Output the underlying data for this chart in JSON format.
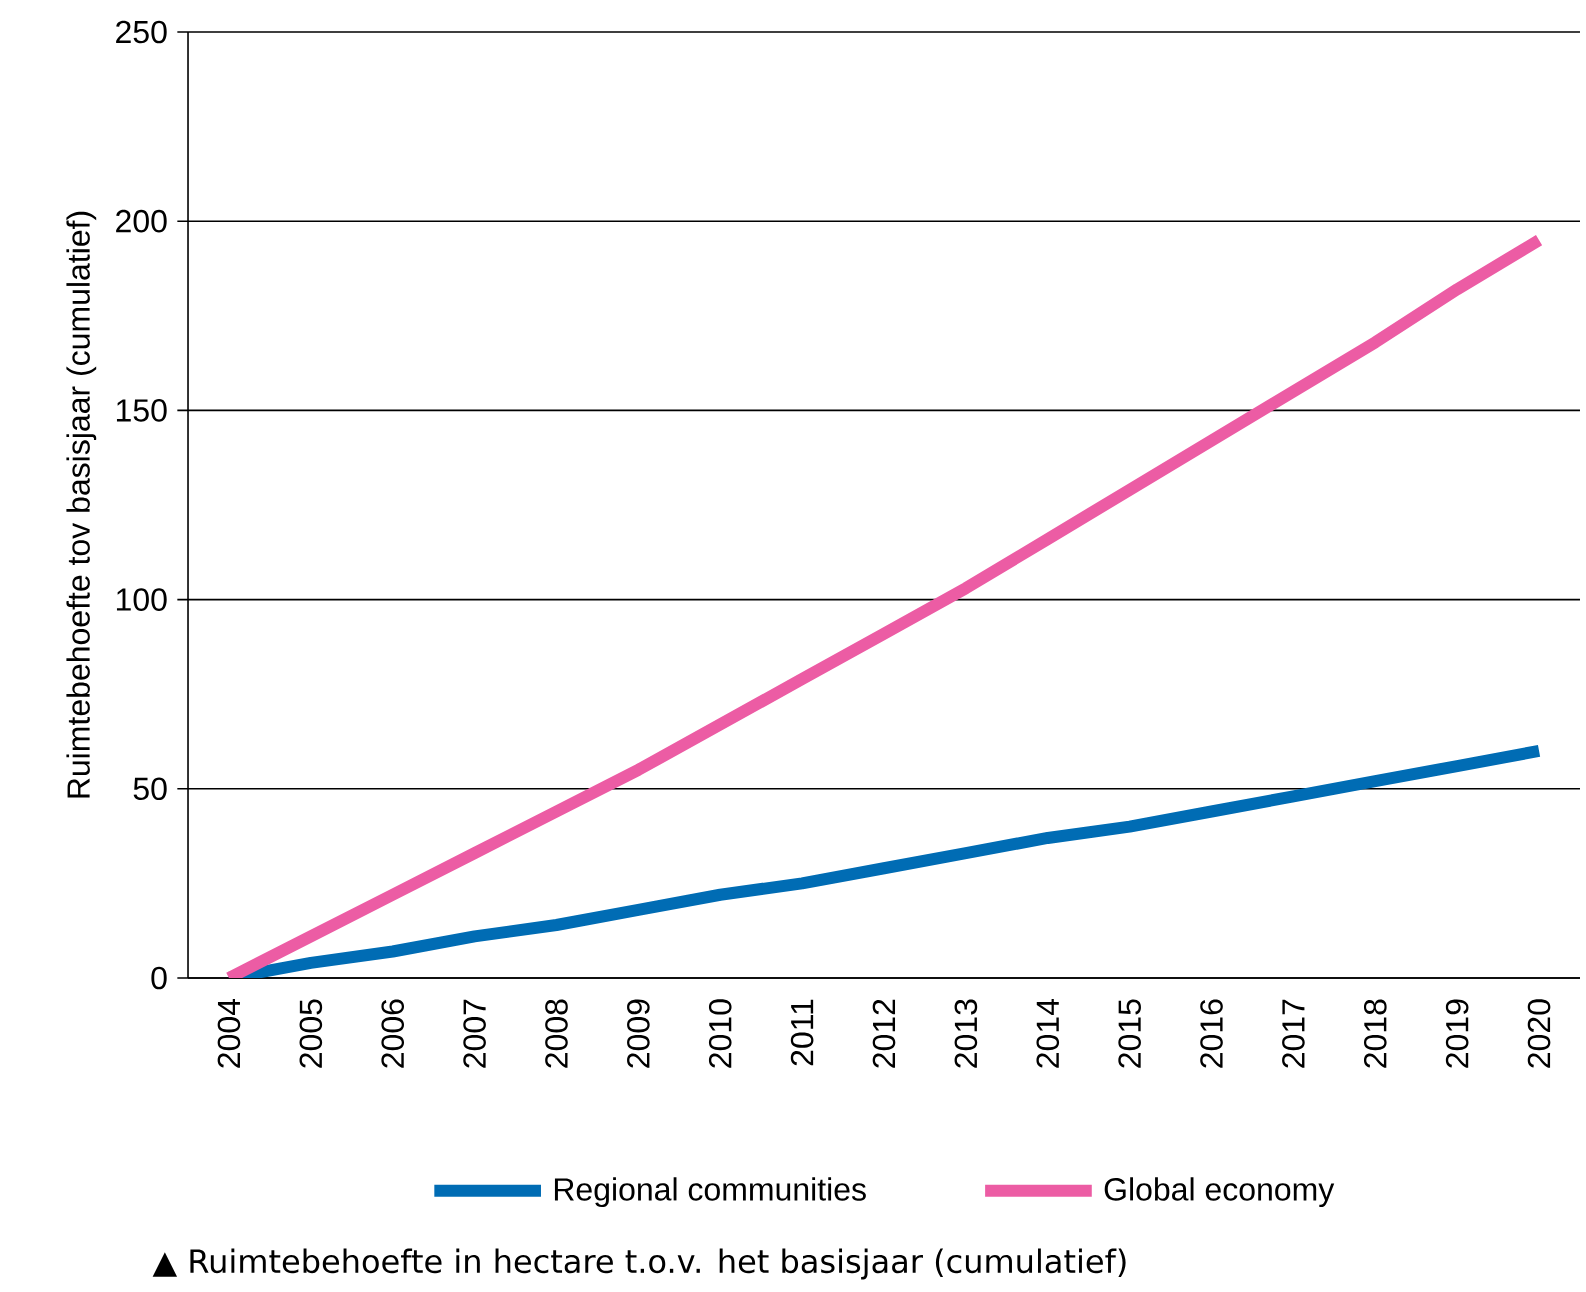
{
  "chart_data": {
    "type": "line",
    "ylabel": "Ruimtebehoefte tov basisjaar (cumulatief)",
    "categories": [
      "2004",
      "2005",
      "2006",
      "2007",
      "2008",
      "2009",
      "2010",
      "2011",
      "2012",
      "2013",
      "2014",
      "2015",
      "2016",
      "2017",
      "2018",
      "2019",
      "2020"
    ],
    "series": [
      {
        "name": "Regional communities",
        "color": "#006cb4",
        "values": [
          0,
          4,
          7,
          11,
          14,
          18,
          22,
          25,
          29,
          33,
          37,
          40,
          44,
          48,
          52,
          56,
          60
        ]
      },
      {
        "name": "Global economy",
        "color": "#ec5ca4",
        "values": [
          0,
          11,
          22,
          33,
          44,
          55,
          67,
          79,
          91,
          103,
          116,
          129,
          142,
          155,
          168,
          182,
          195
        ]
      }
    ],
    "ylim": [
      0,
      250
    ],
    "yticks": [
      0,
      50,
      100,
      150,
      200,
      250
    ],
    "grid": "y",
    "legend": "bottom",
    "annotations": [
      "▲ Ruimtebehoefte in hectare  t.o.v. het basisjaar (cumulatief)"
    ]
  }
}
